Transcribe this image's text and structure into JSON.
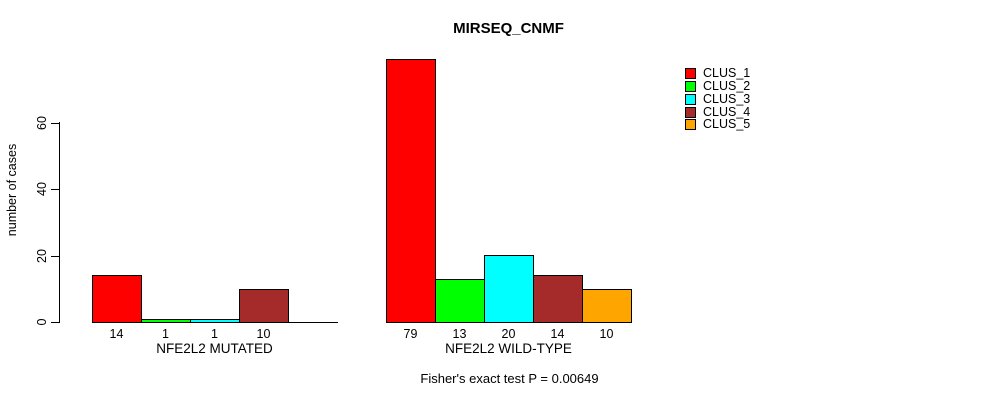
{
  "chart_data": {
    "type": "bar",
    "title": "MIRSEQ_CNMF",
    "ylabel": "number of cases",
    "xlabel": "",
    "ylim": [
      0,
      60
    ],
    "yticks": [
      0,
      20,
      40,
      60
    ],
    "grid": false,
    "legend_position": "right",
    "series_names": [
      "CLUS_1",
      "CLUS_2",
      "CLUS_3",
      "CLUS_4",
      "CLUS_5"
    ],
    "series_colors": [
      "#FF0000",
      "#00FF00",
      "#00FFFF",
      "#A52A2A",
      "#FFA500"
    ],
    "groups": [
      {
        "label": "NFE2L2 MUTATED",
        "values": [
          14,
          1,
          1,
          10,
          0
        ],
        "bar_labels": [
          "14",
          "1",
          "1",
          "10",
          ""
        ]
      },
      {
        "label": "NFE2L2 WILD-TYPE",
        "values": [
          79,
          13,
          20,
          14,
          10
        ],
        "bar_labels": [
          "79",
          "13",
          "20",
          "14",
          "10"
        ]
      }
    ],
    "annotation": "Fisher's exact test P = 0.00649"
  }
}
